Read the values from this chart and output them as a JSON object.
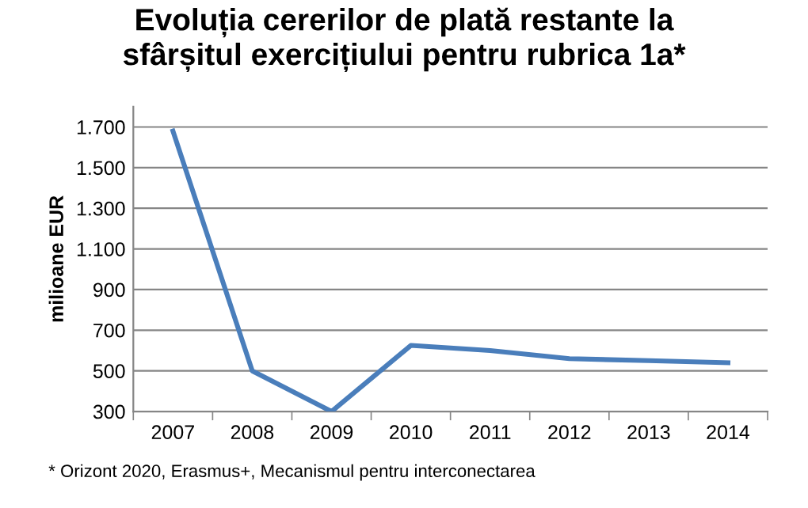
{
  "chart_data": {
    "type": "line",
    "title": "Evoluția cererilor de plată restante la\nsfârșitul exercițiului pentru rubrica 1a*",
    "ylabel": "milioane EUR",
    "categories": [
      "2007",
      "2008",
      "2009",
      "2010",
      "2011",
      "2012",
      "2013",
      "2014"
    ],
    "series": [
      {
        "color": "#4a7ebb",
        "values": [
          1680,
          500,
          300,
          625,
          600,
          560,
          550,
          540
        ]
      }
    ],
    "ylim": [
      300,
      1800
    ],
    "yticks": [
      {
        "value": 300,
        "label": "300"
      },
      {
        "value": 500,
        "label": "500"
      },
      {
        "value": 700,
        "label": "700"
      },
      {
        "value": 900,
        "label": "900"
      },
      {
        "value": 1100,
        "label": "1.100"
      },
      {
        "value": 1300,
        "label": "1.300"
      },
      {
        "value": 1500,
        "label": "1.500"
      },
      {
        "value": 1700,
        "label": "1.700"
      }
    ],
    "grid": "y",
    "marker": "none",
    "line_style": "solid",
    "annotations": [
      "* Orizont 2020, Erasmus+, Mecanismul pentru interconectarea"
    ]
  }
}
